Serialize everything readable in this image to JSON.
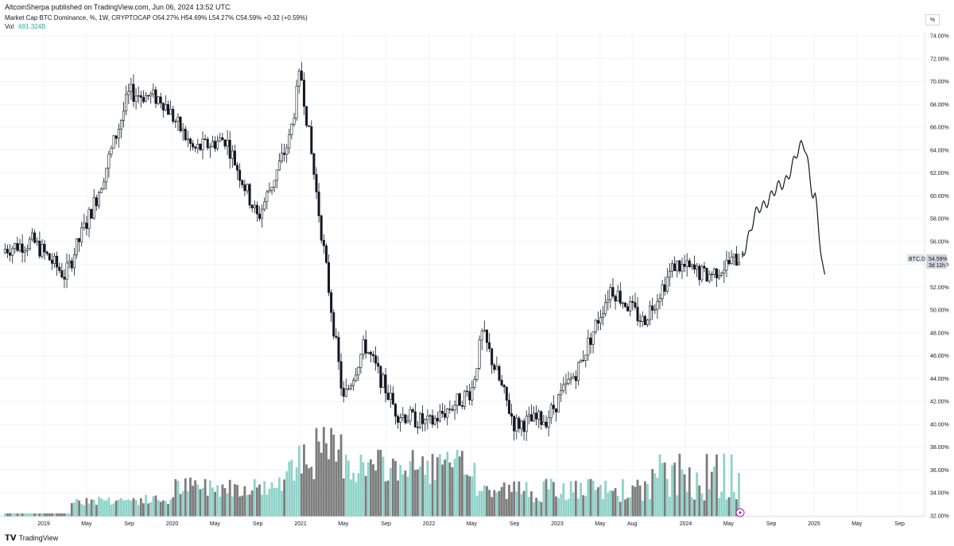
{
  "header": {
    "published": "AltcoinSherpa published on TradingView.com, Jun 06, 2024 13:52 UTC"
  },
  "legend": {
    "symbol": "Market Cap BTC Dominance, %, 1W, CRYPTOCAP",
    "open": "O54.27%",
    "high": "H54.69%",
    "low": "L54.27%",
    "close": "C54.59%",
    "change": "+0.32 (+0.59%)",
    "vol_label": "Vol",
    "vol_value": "691.324B"
  },
  "scale_button": "%",
  "price_label": {
    "symbol": "BTC.D",
    "value": "54.59%",
    "countdown": "3d 11h"
  },
  "brand": {
    "name": "TradingView"
  },
  "colors": {
    "candle": "#131722",
    "volume_up": "#8fd3c9",
    "volume_down": "#7c7c7c",
    "grid": "#f0f3fa"
  },
  "chart_data": {
    "type": "candlestick",
    "y_axis": {
      "ticks": [
        "74.00%",
        "72.00%",
        "70.00%",
        "68.00%",
        "66.00%",
        "64.00%",
        "62.00%",
        "60.00%",
        "58.00%",
        "56.00%",
        "54.00%",
        "52.00%",
        "50.00%",
        "48.00%",
        "46.00%",
        "44.00%",
        "42.00%",
        "40.00%",
        "38.00%",
        "36.00%",
        "34.00%",
        "32.00%"
      ],
      "ylim": [
        32,
        74
      ]
    },
    "x_axis": {
      "ticks": [
        "2019",
        "May",
        "Sep",
        "2020",
        "May",
        "Sep",
        "2021",
        "May",
        "Sep",
        "2022",
        "May",
        "Sep",
        "2023",
        "May",
        "Aug",
        "2024",
        "May",
        "Sep",
        "2025",
        "May",
        "Sep"
      ]
    },
    "weekly_close_anchors": {
      "x": [
        "2018-08",
        "2018-12",
        "2019-03",
        "2019-06",
        "2019-09",
        "2019-12",
        "2020-03",
        "2020-06",
        "2020-09",
        "2020-12",
        "2021-01",
        "2021-05",
        "2021-07",
        "2021-10",
        "2022-01",
        "2022-05",
        "2022-06",
        "2022-09",
        "2022-12",
        "2023-03",
        "2023-06",
        "2023-09",
        "2023-12",
        "2024-03",
        "2024-06"
      ],
      "y": [
        55,
        56,
        53,
        60,
        69,
        68.5,
        64,
        65,
        58,
        65,
        71,
        42,
        47,
        41,
        40,
        43,
        48,
        40,
        40.5,
        45,
        52,
        49,
        54,
        53,
        54.59
      ]
    },
    "projection": {
      "x": [
        "2024-06",
        "2024-08",
        "2024-10",
        "2024-12",
        "2025-01",
        "2025-02"
      ],
      "y": [
        54.6,
        59,
        61,
        64.5,
        60,
        53
      ]
    }
  }
}
